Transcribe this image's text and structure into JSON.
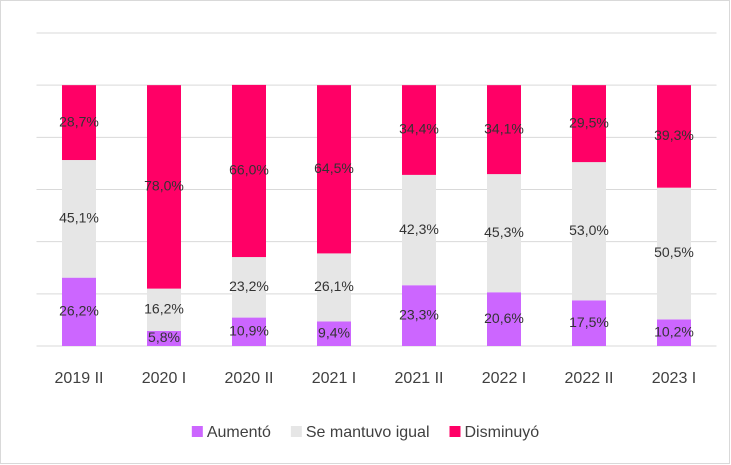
{
  "chart_data": {
    "type": "stacked_bar_100",
    "categories": [
      "2019 II",
      "2020 I",
      "2020 II",
      "2021 I",
      "2021 II",
      "2022 I",
      "2022 II",
      "2023 I"
    ],
    "series": [
      {
        "name": "Aumentó",
        "color": "#cc66ff",
        "values": [
          26.2,
          5.8,
          10.9,
          9.4,
          23.3,
          20.6,
          17.5,
          10.2
        ],
        "value_labels": [
          "26,2%",
          "5,8%",
          "10,9%",
          "9,4%",
          "23,3%",
          "20,6%",
          "17,5%",
          "10,2%"
        ]
      },
      {
        "name": "Se mantuvo igual",
        "color": "#e6e6e6",
        "values": [
          45.1,
          16.2,
          23.2,
          26.1,
          42.3,
          45.3,
          53.0,
          50.5
        ],
        "value_labels": [
          "45,1%",
          "16,2%",
          "23,2%",
          "26,1%",
          "42,3%",
          "45,3%",
          "53,0%",
          "50,5%"
        ]
      },
      {
        "name": "Disminuyó",
        "color": "#ff0066",
        "values": [
          28.7,
          78.0,
          66.0,
          64.5,
          34.4,
          34.1,
          29.5,
          39.3
        ],
        "value_labels": [
          "28,7%",
          "78,0%",
          "66,0%",
          "64,5%",
          "34,4%",
          "34,1%",
          "29,5%",
          "39,3%"
        ]
      }
    ],
    "ylim": [
      0,
      120
    ],
    "yticks": [
      0,
      20,
      40,
      60,
      80,
      100,
      120
    ],
    "grid": true,
    "legend": "bottom"
  }
}
